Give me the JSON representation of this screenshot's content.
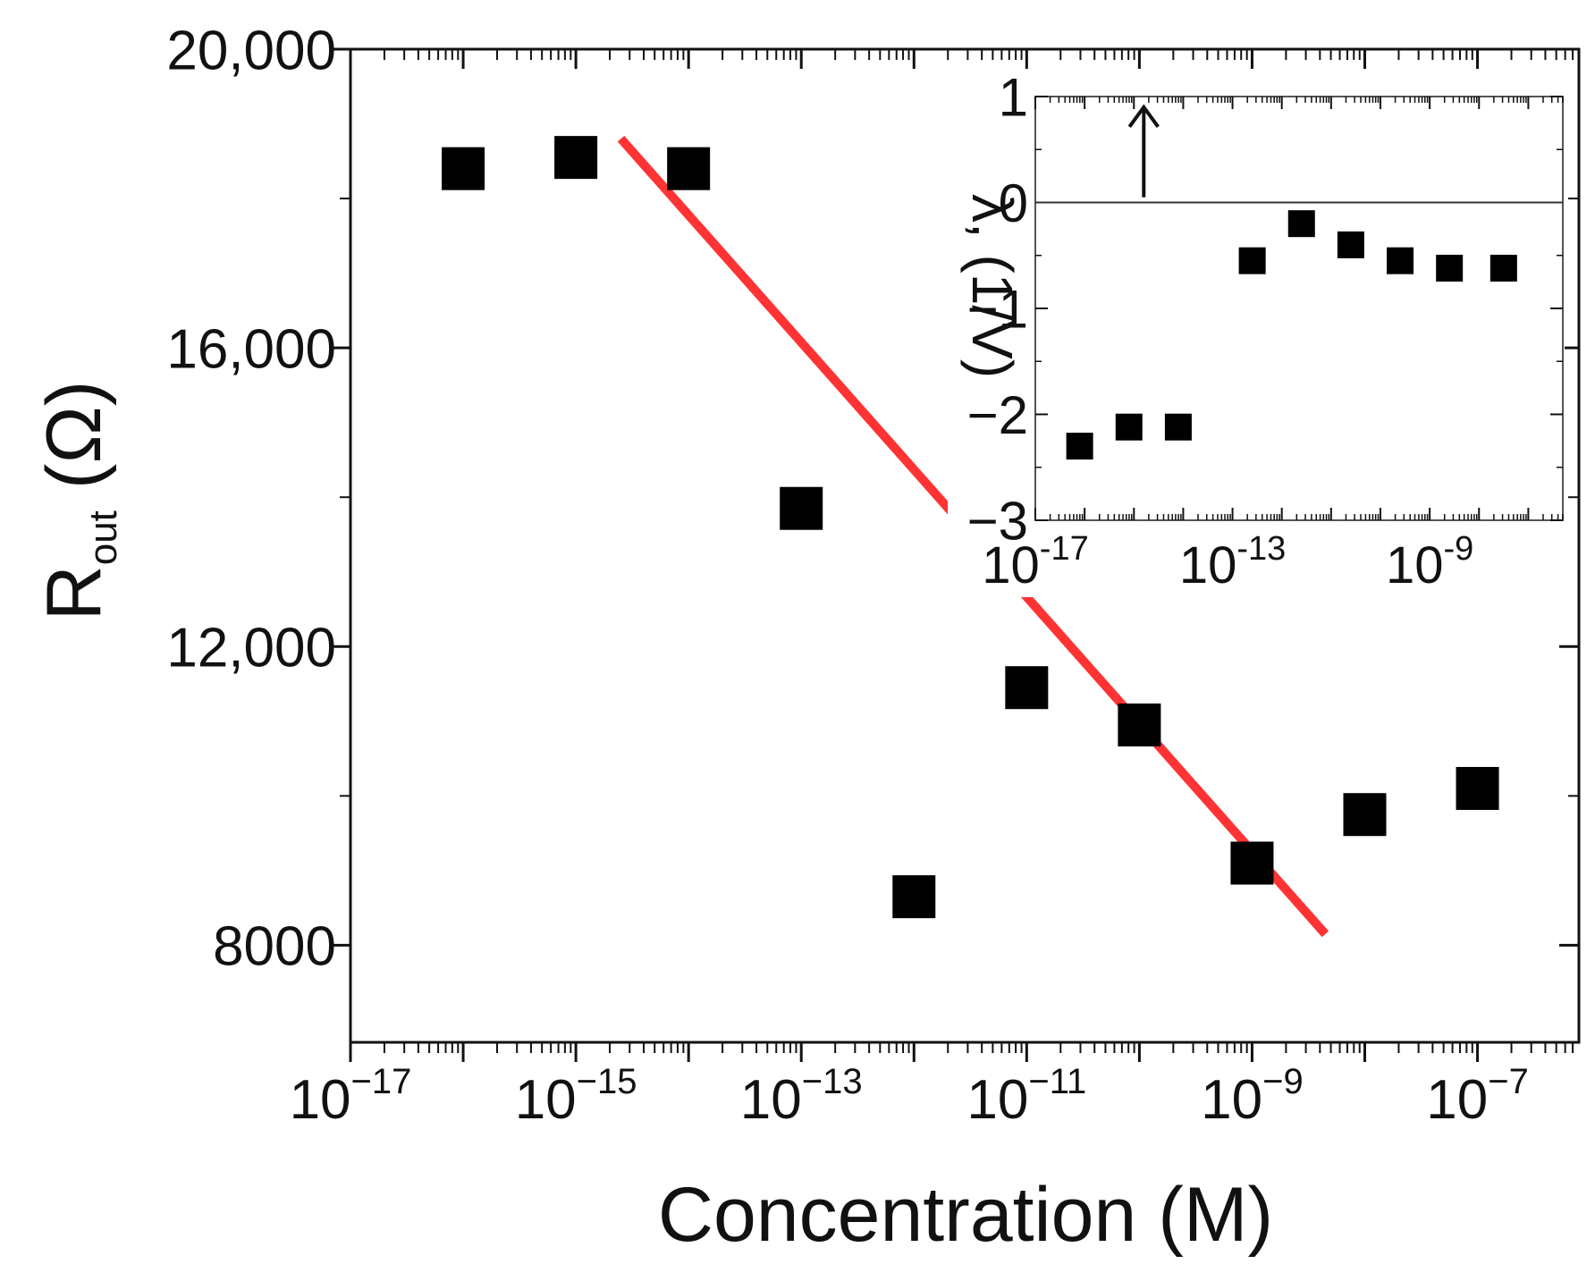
{
  "chart_data": [
    {
      "type": "scatter",
      "id": "main",
      "title": "",
      "xlabel": "Concentration (M)",
      "ylabel": {
        "base": "R",
        "sub": "out",
        "unit": " (Ω)"
      },
      "xscale": "log",
      "xlim_exp": [
        -17,
        -6.1
      ],
      "ylim": [
        6700,
        20000
      ],
      "x_ticks": [
        {
          "exp": -17,
          "base": "10",
          "sup": "−17"
        },
        {
          "exp": -15,
          "base": "10",
          "sup": "−15"
        },
        {
          "exp": -13,
          "base": "10",
          "sup": "−13"
        },
        {
          "exp": -11,
          "base": "10",
          "sup": "−11"
        },
        {
          "exp": -9,
          "base": "10",
          "sup": "−9"
        },
        {
          "exp": -7,
          "base": "10",
          "sup": "−7"
        }
      ],
      "y_ticks": [
        {
          "value": 8000,
          "label": "8000"
        },
        {
          "value": 12000,
          "label": "12,000"
        },
        {
          "value": 16000,
          "label": "16,000"
        },
        {
          "value": 20000,
          "label": "20,000"
        }
      ],
      "series": [
        {
          "name": "data",
          "marker": "square",
          "color": "#000000",
          "points": [
            {
              "x_exp": -16,
              "y": 18400
            },
            {
              "x_exp": -15,
              "y": 18550
            },
            {
              "x_exp": -14,
              "y": 18400
            },
            {
              "x_exp": -13,
              "y": 13850
            },
            {
              "x_exp": -12,
              "y": 8650
            },
            {
              "x_exp": -11,
              "y": 11450
            },
            {
              "x_exp": -10,
              "y": 10950
            },
            {
              "x_exp": -9,
              "y": 9100
            },
            {
              "x_exp": -8,
              "y": 9750
            },
            {
              "x_exp": -7,
              "y": 10100
            }
          ]
        }
      ],
      "fit_line": {
        "color": "#ff3333",
        "from": {
          "x_exp": -14.6,
          "y": 18800
        },
        "to": {
          "x_exp": -8.35,
          "y": 8150
        }
      }
    },
    {
      "type": "scatter",
      "id": "inset",
      "title": "",
      "xlabel": "",
      "ylabel": {
        "text": "λ, (1/V)"
      },
      "xscale": "log",
      "xlim_exp": [
        -17,
        -6.3
      ],
      "ylim": [
        -3,
        1
      ],
      "x_ticks": [
        {
          "exp": -17,
          "base": "10",
          "sup": "-17"
        },
        {
          "exp": -13,
          "base": "10",
          "sup": "-13"
        },
        {
          "exp": -9,
          "base": "10",
          "sup": "-9"
        }
      ],
      "y_ticks": [
        {
          "value": 1,
          "label": "1"
        },
        {
          "value": 0,
          "label": "0"
        },
        {
          "value": -1,
          "label": "−1"
        },
        {
          "value": -2,
          "label": "−2"
        },
        {
          "value": -3,
          "label": "−3"
        }
      ],
      "zero_line": true,
      "arrow": {
        "x_exp": -14.8,
        "from_y": 0.05,
        "to_y": 0.9
      },
      "series": [
        {
          "name": "data",
          "marker": "square",
          "color": "#000000",
          "points": [
            {
              "x_exp": -16.1,
              "y": -2.3
            },
            {
              "x_exp": -15.1,
              "y": -2.12
            },
            {
              "x_exp": -14.1,
              "y": -2.12
            },
            {
              "x_exp": -12.6,
              "y": -0.55
            },
            {
              "x_exp": -11.6,
              "y": -0.2
            },
            {
              "x_exp": -10.6,
              "y": -0.4
            },
            {
              "x_exp": -9.6,
              "y": -0.55
            },
            {
              "x_exp": -8.6,
              "y": -0.62
            },
            {
              "x_exp": -7.5,
              "y": -0.62
            }
          ]
        }
      ]
    }
  ]
}
